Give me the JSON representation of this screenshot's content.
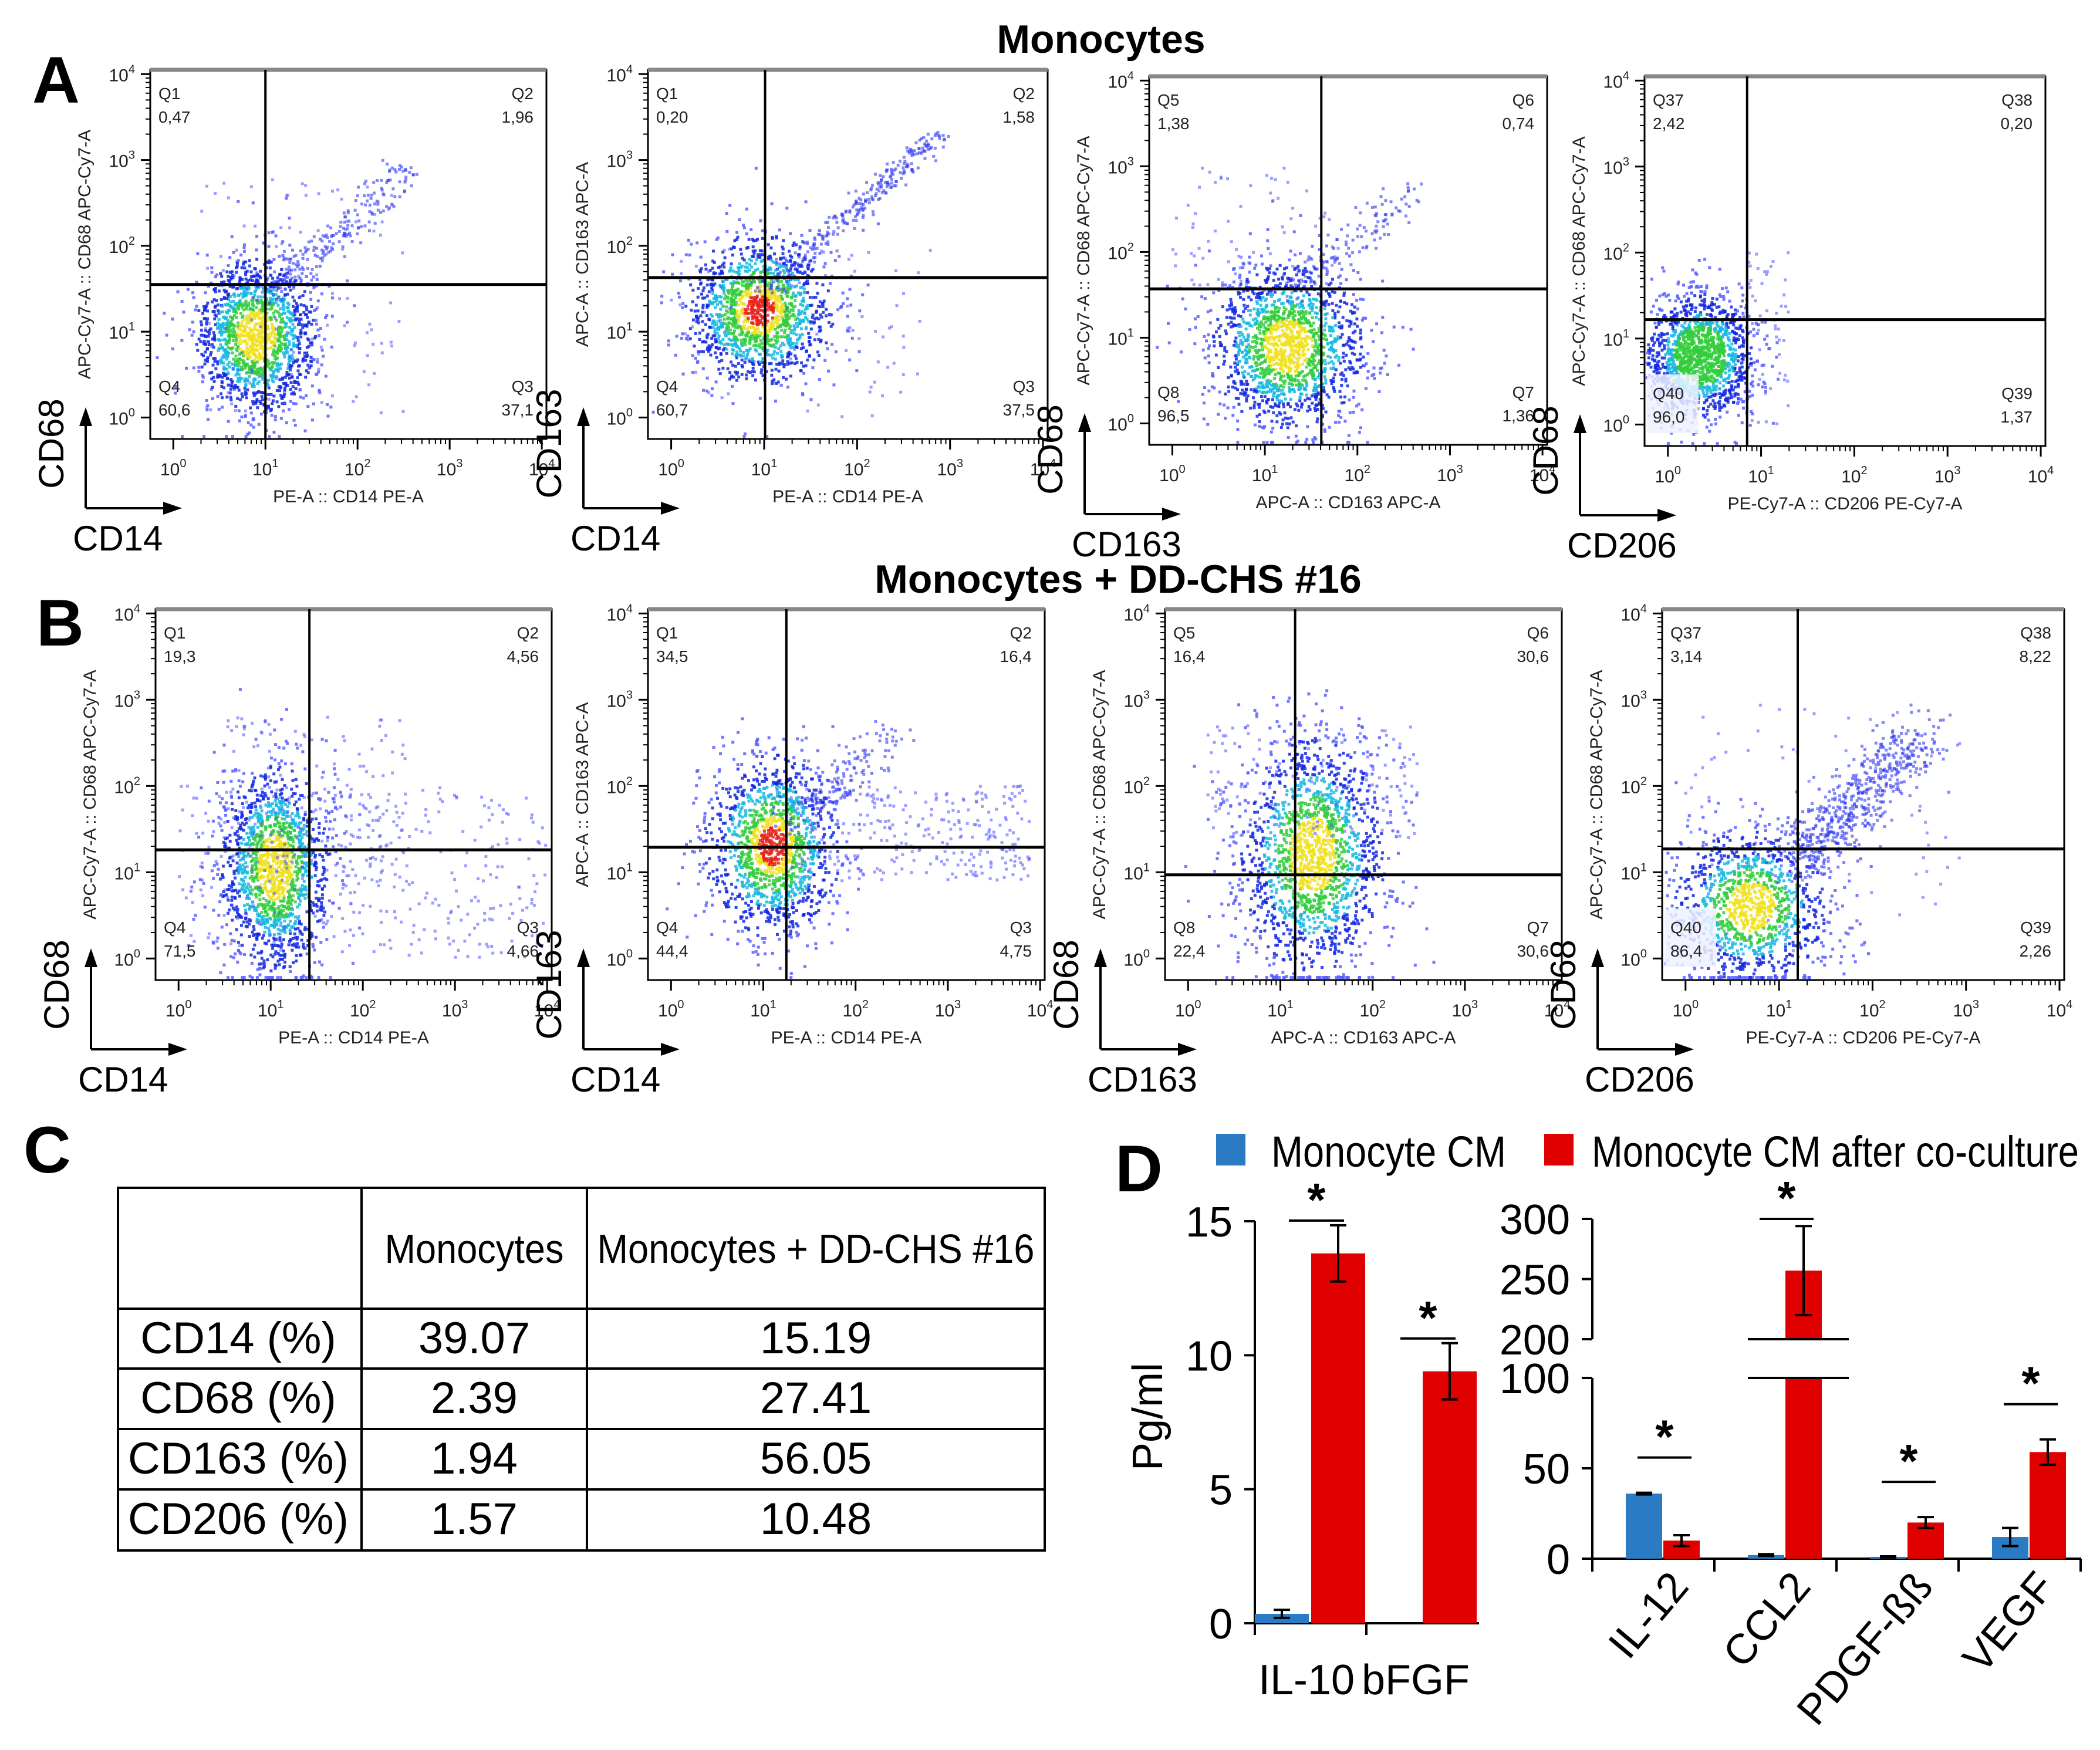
{
  "panel_labels": {
    "a": "A",
    "b": "B",
    "c": "C",
    "d": "D"
  },
  "titles": {
    "row_a": "Monocytes",
    "row_b": "Monocytes + DD-CHS #16"
  },
  "colors": {
    "monocyte_cm": "#2a7bc4",
    "after_coculture": "#e00000"
  },
  "chart_data": [
    {
      "type": "scatter",
      "panel": "A",
      "title": "Monocytes",
      "xlabel": "PE-A :: CD14 PE-A",
      "ylabel": "APC-Cy7-A :: CD68 APC-Cy7-A",
      "marker_x": "CD14",
      "marker_y": "CD68",
      "tick_base": "10",
      "tick_exponents": [
        "0",
        "1",
        "2",
        "3",
        "4"
      ],
      "axis_range_log10": [
        0,
        4
      ],
      "gate_log10": {
        "x": 1.0,
        "y": 1.55
      },
      "quadrants": [
        {
          "name": "Q1",
          "value": "0,47"
        },
        {
          "name": "Q2",
          "value": "1,96"
        },
        {
          "name": "Q3",
          "value": "37,1"
        },
        {
          "name": "Q4",
          "value": "60,6"
        }
      ]
    },
    {
      "type": "scatter",
      "panel": "A",
      "title": "Monocytes",
      "xlabel": "PE-A :: CD14 PE-A",
      "ylabel": "APC-A :: CD163 APC-A",
      "marker_x": "CD14",
      "marker_y": "CD163",
      "tick_base": "10",
      "tick_exponents": [
        "0",
        "1",
        "2",
        "3",
        "4"
      ],
      "axis_range_log10": [
        0,
        4
      ],
      "gate_log10": {
        "x": 1.01,
        "y": 1.63
      },
      "quadrants": [
        {
          "name": "Q1",
          "value": "0,20"
        },
        {
          "name": "Q2",
          "value": "1,58"
        },
        {
          "name": "Q3",
          "value": "37,5"
        },
        {
          "name": "Q4",
          "value": "60,7"
        }
      ]
    },
    {
      "type": "scatter",
      "panel": "A",
      "title": "Monocytes",
      "xlabel": "APC-A :: CD163 APC-A",
      "ylabel": "APC-Cy7-A :: CD68 APC-Cy7-A",
      "marker_x": "CD163",
      "marker_y": "CD68",
      "tick_base": "10",
      "tick_exponents": [
        "0",
        "1",
        "2",
        "3",
        "4"
      ],
      "axis_range_log10": [
        0,
        4
      ],
      "gate_log10": {
        "x": 1.61,
        "y": 1.57
      },
      "quadrants": [
        {
          "name": "Q5",
          "value": "1,38"
        },
        {
          "name": "Q6",
          "value": "0,74"
        },
        {
          "name": "Q7",
          "value": "1,36"
        },
        {
          "name": "Q8",
          "value": "96,5"
        }
      ]
    },
    {
      "type": "scatter",
      "panel": "A",
      "title": "Monocytes",
      "xlabel": "PE-Cy7-A :: CD206 PE-Cy7-A",
      "ylabel": "APC-Cy7-A :: CD68 APC-Cy7-A",
      "marker_x": "CD206",
      "marker_y": "CD68",
      "tick_base": "10",
      "tick_exponents": [
        "0",
        "1",
        "2",
        "3",
        "4"
      ],
      "axis_range_log10": [
        0,
        4
      ],
      "gate_log10": {
        "x": 0.85,
        "y": 1.22
      },
      "quadrants": [
        {
          "name": "Q37",
          "value": "2,42"
        },
        {
          "name": "Q38",
          "value": "0,20"
        },
        {
          "name": "Q39",
          "value": "1,37"
        },
        {
          "name": "Q40",
          "value": "96,0"
        }
      ]
    },
    {
      "type": "scatter",
      "panel": "B",
      "title": "Monocytes + DD-CHS #16",
      "xlabel": "PE-A :: CD14 PE-A",
      "ylabel": "APC-Cy7-A :: CD68 APC-Cy7-A",
      "marker_x": "CD14",
      "marker_y": "CD68",
      "tick_base": "10",
      "tick_exponents": [
        "0",
        "1",
        "2",
        "3",
        "4"
      ],
      "axis_range_log10": [
        0,
        4
      ],
      "gate_log10": {
        "x": 1.42,
        "y": 1.26
      },
      "quadrants": [
        {
          "name": "Q1",
          "value": "19,3"
        },
        {
          "name": "Q2",
          "value": "4,56"
        },
        {
          "name": "Q3",
          "value": "4,66"
        },
        {
          "name": "Q4",
          "value": "71,5"
        }
      ]
    },
    {
      "type": "scatter",
      "panel": "B",
      "title": "Monocytes + DD-CHS #16",
      "xlabel": "PE-A :: CD14 PE-A",
      "ylabel": "APC-A :: CD163 APC-A",
      "marker_x": "CD14",
      "marker_y": "CD163",
      "tick_base": "10",
      "tick_exponents": [
        "0",
        "1",
        "2",
        "3",
        "4"
      ],
      "axis_range_log10": [
        0,
        4
      ],
      "gate_log10": {
        "x": 1.25,
        "y": 1.29
      },
      "quadrants": [
        {
          "name": "Q1",
          "value": "34,5"
        },
        {
          "name": "Q2",
          "value": "16,4"
        },
        {
          "name": "Q3",
          "value": "4,75"
        },
        {
          "name": "Q4",
          "value": "44,4"
        }
      ]
    },
    {
      "type": "scatter",
      "panel": "B",
      "title": "Monocytes + DD-CHS #16",
      "xlabel": "APC-A :: CD163 APC-A",
      "ylabel": "APC-Cy7-A :: CD68 APC-Cy7-A",
      "marker_x": "CD163",
      "marker_y": "CD68",
      "tick_base": "10",
      "tick_exponents": [
        "0",
        "1",
        "2",
        "3",
        "4"
      ],
      "axis_range_log10": [
        0,
        4
      ],
      "gate_log10": {
        "x": 1.16,
        "y": 0.97
      },
      "quadrants": [
        {
          "name": "Q5",
          "value": "16,4"
        },
        {
          "name": "Q6",
          "value": "30,6"
        },
        {
          "name": "Q7",
          "value": "30,6"
        },
        {
          "name": "Q8",
          "value": "22,4"
        }
      ]
    },
    {
      "type": "scatter",
      "panel": "B",
      "title": "Monocytes + DD-CHS #16",
      "xlabel": "PE-Cy7-A :: CD206 PE-Cy7-A",
      "ylabel": "APC-Cy7-A :: CD68 APC-Cy7-A",
      "marker_x": "CD206",
      "marker_y": "CD68",
      "tick_base": "10",
      "tick_exponents": [
        "0",
        "1",
        "2",
        "3",
        "4"
      ],
      "axis_range_log10": [
        0,
        4
      ],
      "gate_log10": {
        "x": 1.2,
        "y": 1.27
      },
      "quadrants": [
        {
          "name": "Q37",
          "value": "3,14"
        },
        {
          "name": "Q38",
          "value": "8,22"
        },
        {
          "name": "Q39",
          "value": "2,26"
        },
        {
          "name": "Q40",
          "value": "86,4"
        }
      ]
    },
    {
      "type": "table",
      "panel": "C",
      "headers": [
        "",
        "Monocytes",
        "Monocytes + DD-CHS #16"
      ],
      "rows": [
        [
          "CD14 (%)",
          "39.07",
          "15.19"
        ],
        [
          "CD68 (%)",
          "2.39",
          "27.41"
        ],
        [
          "CD163 (%)",
          "1.94",
          "56.05"
        ],
        [
          "CD206 (%)",
          "1.57",
          "10.48"
        ]
      ]
    },
    {
      "type": "bar",
      "panel": "D",
      "ylabel": "Pg/ml",
      "ylim": [
        0,
        15
      ],
      "yticks": [
        "0",
        "5",
        "10",
        "15"
      ],
      "ytick_values": [
        0,
        5,
        10,
        15
      ],
      "categories": [
        "IL-10",
        "bFGF"
      ],
      "legend": [
        "Monocyte CM",
        "Monocyte CM after co-culture"
      ],
      "legend_position": "top",
      "series": [
        {
          "name": "Monocyte CM",
          "values": [
            0.35,
            0
          ],
          "errors": [
            0.15,
            0
          ]
        },
        {
          "name": "Monocyte CM after co-culture",
          "values": [
            13.8,
            9.4
          ],
          "errors": [
            1.05,
            1.05
          ]
        }
      ],
      "significance": [
        "*",
        "*"
      ]
    },
    {
      "type": "bar",
      "panel": "D",
      "ylabel": "Pg/ml",
      "axis_break": [
        100,
        200
      ],
      "ylim": [
        0,
        300
      ],
      "yticks": [
        "0",
        "50",
        "100",
        "200",
        "250",
        "300"
      ],
      "ytick_values": [
        0,
        50,
        100,
        200,
        250,
        300
      ],
      "categories": [
        "IL-12",
        "CCL2",
        "PDGF-ßß",
        "VEGF"
      ],
      "series": [
        {
          "name": "Monocyte CM",
          "values": [
            36,
            2,
            1,
            12
          ],
          "errors": [
            0.5,
            0.5,
            0.3,
            5
          ]
        },
        {
          "name": "Monocyte CM after co-culture",
          "values": [
            10,
            257,
            20,
            59
          ],
          "errors": [
            3,
            37,
            3,
            7
          ]
        }
      ],
      "significance": [
        "*",
        "*",
        "*",
        "*"
      ]
    }
  ]
}
